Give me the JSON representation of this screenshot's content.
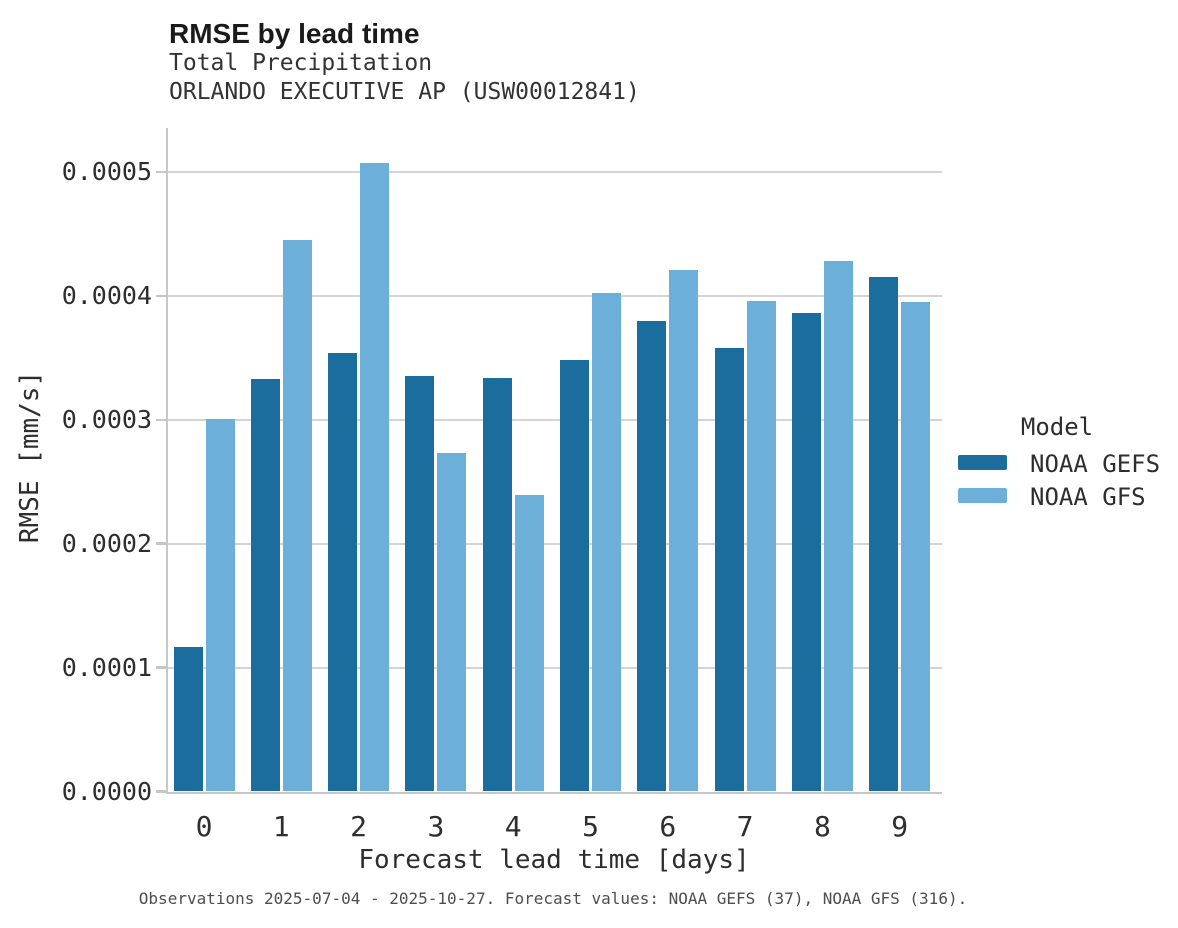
{
  "caption": "Observations 2025-07-04 - 2025-10-27. Forecast values: NOAA GEFS (37), NOAA GFS (316).",
  "chart_data": {
    "type": "bar",
    "title": "RMSE by lead time",
    "subtitle": "Total Precipitation",
    "station": "ORLANDO EXECUTIVE AP (USW00012841)",
    "xlabel": "Forecast lead time [days]",
    "ylabel": "RMSE [mm/s]",
    "categories": [
      "0",
      "1",
      "2",
      "3",
      "4",
      "5",
      "6",
      "7",
      "8",
      "9"
    ],
    "series": [
      {
        "name": "NOAA GEFS",
        "color": "#1a6d9c",
        "values": [
          0.000117,
          0.000333,
          0.000354,
          0.000335,
          0.000334,
          0.000348,
          0.00038,
          0.000358,
          0.000386,
          0.000415
        ]
      },
      {
        "name": "NOAA GFS",
        "color": "#6cb0d9",
        "values": [
          0.000301,
          0.000445,
          0.000507,
          0.000273,
          0.000239,
          0.000402,
          0.000421,
          0.000396,
          0.000428,
          0.000395
        ]
      }
    ],
    "ylim": [
      0,
      0.000535
    ],
    "yticks": {
      "values": [
        0,
        0.0001,
        0.0002,
        0.0003,
        0.0004,
        0.0005
      ],
      "labels": [
        "0.0000",
        "0.0001",
        "0.0002",
        "0.0003",
        "0.0004",
        "0.0005"
      ]
    },
    "grid": "horizontal",
    "legend": {
      "title": "Model",
      "position": "right"
    }
  }
}
